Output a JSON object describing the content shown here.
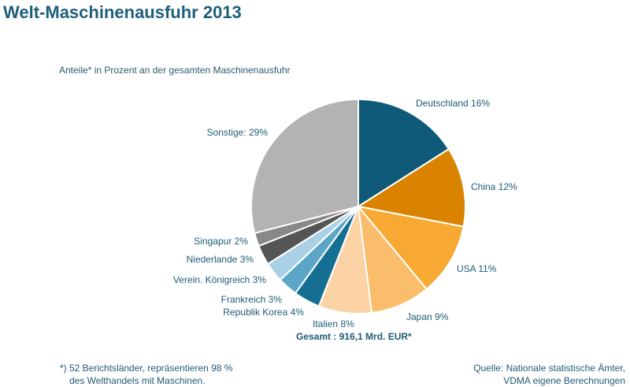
{
  "title": "Welt-Maschinenausfuhr 2013",
  "subtitle": "Anteile* in Prozent an der gesamten Maschinenausfuhr",
  "total_label": "Gesamt : 916,1 Mrd. EUR*",
  "footnote": {
    "line1": "*) 52 Berichtsländer, repräsentieren 98 %",
    "line2": "des Welthandels mit Maschinen."
  },
  "source": {
    "line1": "Quelle: Nationale statistische Ämter,",
    "line2": "VDMA eigene Berechnungen"
  },
  "chart_data": {
    "type": "pie",
    "title": "Welt-Maschinenausfuhr 2013",
    "slices": [
      {
        "label": "Deutschland  16%",
        "value": 16,
        "color": "#0e5a78"
      },
      {
        "label": "China 12%",
        "value": 12,
        "color": "#d98300"
      },
      {
        "label": "USA 11%",
        "value": 11,
        "color": "#f7a934"
      },
      {
        "label": "Japan 9%",
        "value": 9,
        "color": "#f9bd6b"
      },
      {
        "label": "Italien 8%",
        "value": 8,
        "color": "#fbd3a4"
      },
      {
        "label": "Republik Korea 4%",
        "value": 4,
        "color": "#156f93"
      },
      {
        "label": "Frankreich 3%",
        "value": 3,
        "color": "#5ba6c8"
      },
      {
        "label": "Verein. Königreich 3%",
        "value": 3,
        "color": "#a9d0e5"
      },
      {
        "label": "Niederlande 3%",
        "value": 3,
        "color": "#555555"
      },
      {
        "label": "Singapur 2%",
        "value": 2,
        "color": "#888888"
      },
      {
        "label": "Sonstige: 29%",
        "value": 29,
        "color": "#b3b3b3"
      }
    ]
  }
}
